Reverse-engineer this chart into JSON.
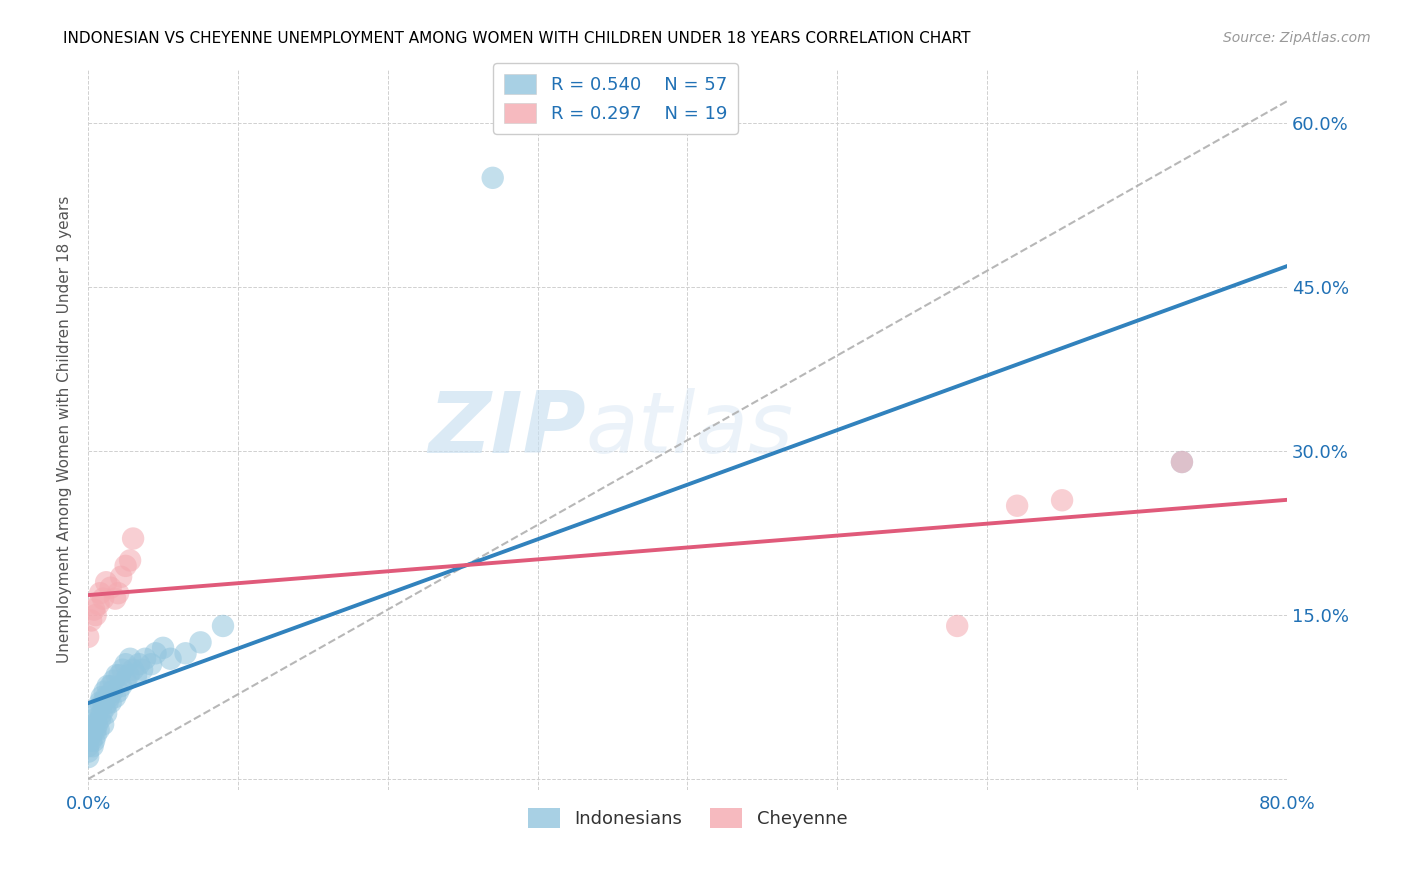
{
  "title": "INDONESIAN VS CHEYENNE UNEMPLOYMENT AMONG WOMEN WITH CHILDREN UNDER 18 YEARS CORRELATION CHART",
  "source": "Source: ZipAtlas.com",
  "ylabel": "Unemployment Among Women with Children Under 18 years",
  "xlim": [
    0.0,
    0.8
  ],
  "ylim": [
    -0.01,
    0.65
  ],
  "xticks": [
    0.0,
    0.1,
    0.2,
    0.3,
    0.4,
    0.5,
    0.6,
    0.7,
    0.8
  ],
  "xticklabels": [
    "0.0%",
    "",
    "",
    "",
    "",
    "",
    "",
    "",
    "80.0%"
  ],
  "yticks": [
    0.0,
    0.15,
    0.3,
    0.45,
    0.6
  ],
  "yticklabels": [
    "",
    "15.0%",
    "30.0%",
    "45.0%",
    "60.0%"
  ],
  "indonesian_color": "#92c5de",
  "cheyenne_color": "#f4a9b0",
  "indonesian_line_color": "#3182bd",
  "cheyenne_line_color": "#e05a7a",
  "trendline_color": "#b0b0b0",
  "R_indonesian": 0.54,
  "N_indonesian": 57,
  "R_cheyenne": 0.297,
  "N_cheyenne": 19,
  "indonesian_x": [
    0.0,
    0.0,
    0.0,
    0.002,
    0.002,
    0.003,
    0.003,
    0.004,
    0.004,
    0.005,
    0.005,
    0.005,
    0.006,
    0.006,
    0.007,
    0.007,
    0.008,
    0.008,
    0.009,
    0.009,
    0.01,
    0.01,
    0.011,
    0.011,
    0.012,
    0.012,
    0.013,
    0.013,
    0.014,
    0.015,
    0.015,
    0.016,
    0.017,
    0.018,
    0.019,
    0.02,
    0.021,
    0.022,
    0.023,
    0.025,
    0.025,
    0.027,
    0.028,
    0.03,
    0.032,
    0.034,
    0.036,
    0.038,
    0.042,
    0.045,
    0.05,
    0.055,
    0.065,
    0.075,
    0.09,
    0.27,
    0.73
  ],
  "indonesian_y": [
    0.02,
    0.03,
    0.025,
    0.035,
    0.04,
    0.03,
    0.045,
    0.035,
    0.05,
    0.04,
    0.055,
    0.045,
    0.05,
    0.06,
    0.045,
    0.065,
    0.055,
    0.07,
    0.06,
    0.075,
    0.05,
    0.07,
    0.065,
    0.08,
    0.06,
    0.075,
    0.07,
    0.085,
    0.075,
    0.07,
    0.085,
    0.08,
    0.09,
    0.075,
    0.095,
    0.08,
    0.095,
    0.085,
    0.1,
    0.09,
    0.105,
    0.095,
    0.11,
    0.1,
    0.095,
    0.105,
    0.1,
    0.11,
    0.105,
    0.115,
    0.12,
    0.11,
    0.115,
    0.125,
    0.14,
    0.55,
    0.29
  ],
  "cheyenne_x": [
    0.0,
    0.002,
    0.004,
    0.005,
    0.007,
    0.008,
    0.01,
    0.012,
    0.015,
    0.018,
    0.02,
    0.022,
    0.025,
    0.028,
    0.03,
    0.58,
    0.62,
    0.65,
    0.73
  ],
  "cheyenne_y": [
    0.13,
    0.145,
    0.155,
    0.15,
    0.16,
    0.17,
    0.165,
    0.18,
    0.175,
    0.165,
    0.17,
    0.185,
    0.195,
    0.2,
    0.22,
    0.14,
    0.25,
    0.255,
    0.29
  ],
  "watermark_zip": "ZIP",
  "watermark_atlas": "atlas"
}
